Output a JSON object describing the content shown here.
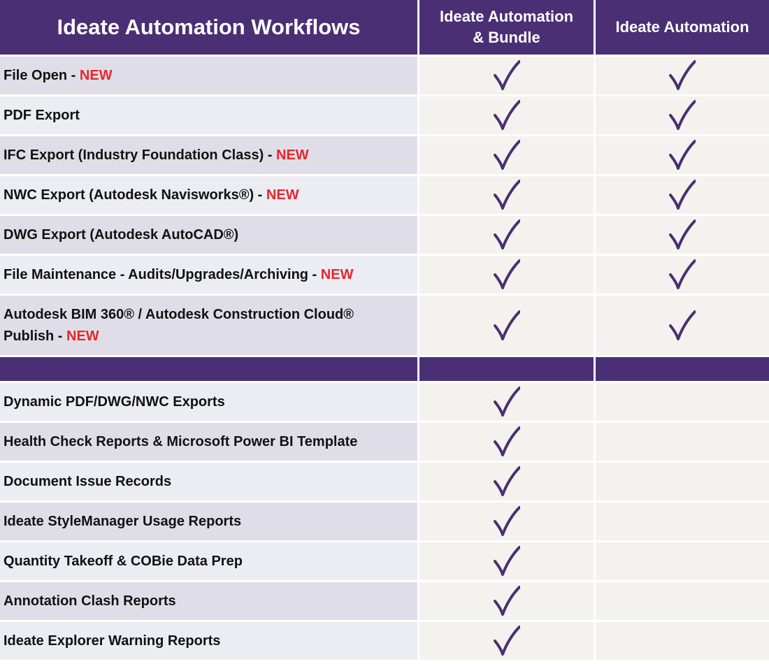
{
  "header": {
    "title": "Ideate Automation Workflows",
    "col1_line1": "Ideate Automation",
    "col1_line2": "& Bundle",
    "col2": "Ideate Automation"
  },
  "new_label": "NEW",
  "icons": {
    "check": "check-icon",
    "check_color": "#4a2f74"
  },
  "colors": {
    "header_bg": "#4a2f74",
    "new_text": "#e8262c"
  },
  "group1": [
    {
      "label": "File Open - ",
      "is_new": true,
      "bundle": true,
      "automation": true
    },
    {
      "label": "PDF Export",
      "is_new": false,
      "bundle": true,
      "automation": true
    },
    {
      "label": "IFC Export (Industry Foundation Class) - ",
      "is_new": true,
      "bundle": true,
      "automation": true
    },
    {
      "label": "NWC Export (Autodesk Navisworks®) - ",
      "is_new": true,
      "bundle": true,
      "automation": true
    },
    {
      "label": "DWG Export (Autodesk AutoCAD®)",
      "is_new": false,
      "bundle": true,
      "automation": true
    },
    {
      "label": "File Maintenance - Audits/Upgrades/Archiving - ",
      "is_new": true,
      "bundle": true,
      "automation": true
    },
    {
      "label_line1": "Autodesk BIM 360® / Autodesk Construction Cloud®",
      "label": "Publish - ",
      "is_new": true,
      "bundle": true,
      "automation": true,
      "tall": true
    }
  ],
  "group2": [
    {
      "label": "Dynamic PDF/DWG/NWC Exports",
      "bundle": true,
      "automation": false
    },
    {
      "label": "Health Check Reports & Microsoft Power BI Template",
      "bundle": true,
      "automation": false
    },
    {
      "label": "Document Issue Records",
      "bundle": true,
      "automation": false
    },
    {
      "label": "Ideate StyleManager Usage Reports",
      "bundle": true,
      "automation": false
    },
    {
      "label": "Quantity Takeoff & COBie Data Prep",
      "bundle": true,
      "automation": false
    },
    {
      "label": "Annotation Clash Reports",
      "bundle": true,
      "automation": false
    },
    {
      "label": "Ideate Explorer Warning Reports",
      "bundle": true,
      "automation": false
    }
  ]
}
